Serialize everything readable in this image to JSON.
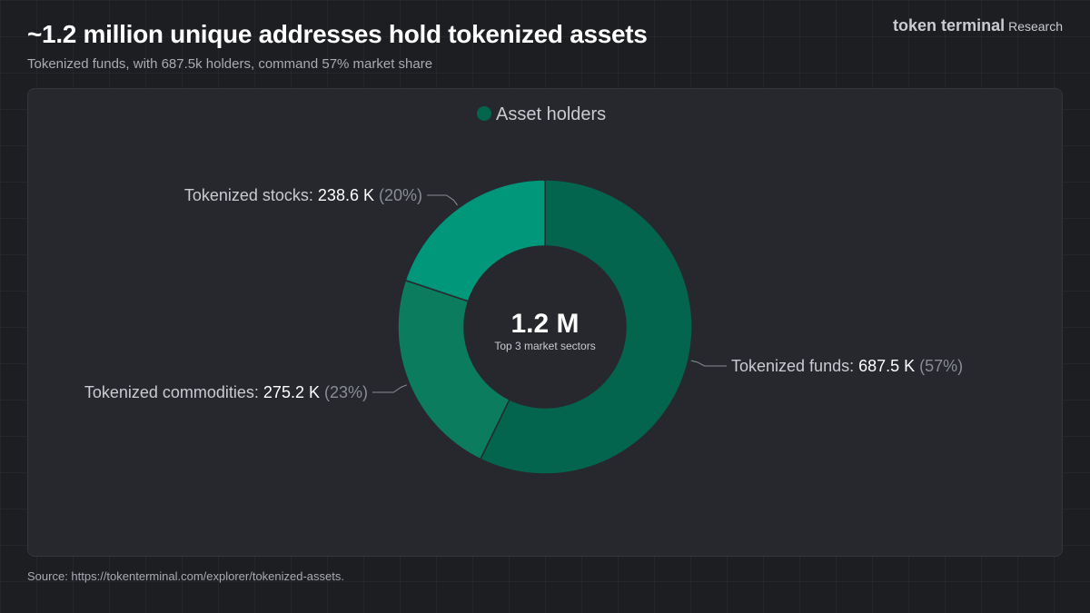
{
  "header": {
    "title": "~1.2 million unique addresses hold tokenized assets",
    "subtitle": "Tokenized funds, with 687.5k holders, command 57% market share",
    "brand": "token terminal",
    "brand_sub": "Research"
  },
  "footer": {
    "source": "Source: https://tokenterminal.com/explorer/tokenized-assets."
  },
  "colors": {
    "funds": "#04654e",
    "commodities": "#0b7d5e",
    "stocks": "#00977a",
    "legend_dot": "#04654e"
  },
  "chart_data": {
    "type": "pie",
    "style": "donut",
    "legend": [
      "Asset holders"
    ],
    "legend_position": "top-center",
    "center_value": "1.2 M",
    "center_label": "Top 3 market sectors",
    "slices": [
      {
        "label": "Tokenized funds",
        "value": 687.5,
        "value_text": "687.5 K",
        "pct_text": "(57%)",
        "color": "#04654e"
      },
      {
        "label": "Tokenized commodities",
        "value": 275.2,
        "value_text": "275.2 K",
        "pct_text": "(23%)",
        "color": "#0b7d5e"
      },
      {
        "label": "Tokenized stocks",
        "value": 238.6,
        "value_text": "238.6 K",
        "pct_text": "(20%)",
        "color": "#00977a"
      }
    ]
  }
}
